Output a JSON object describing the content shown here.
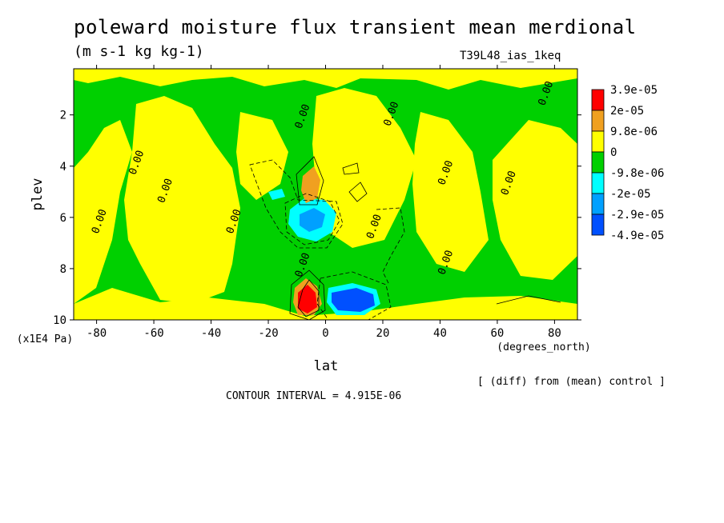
{
  "title": "poleward moisture flux transient mean merdional",
  "units": "(m s-1 kg kg-1)",
  "run_id": "T39L48_ias_1keq",
  "contour_interval_text": "CONTOUR INTERVAL = 4.915E-06",
  "diff_note": "[ (diff) from (mean) control ]",
  "colors": {
    "red": "#ff0000",
    "orange": "#f0a020",
    "yellow": "#ffff00",
    "green": "#00d000",
    "cyan": "#00ffff",
    "sky": "#00a0ff",
    "blue": "#0050ff"
  },
  "chart_data": {
    "type": "heatmap",
    "xlabel": "lat",
    "xunits": "(degrees_north)",
    "ylabel": "plev",
    "yunits": "(x1E4 Pa)",
    "xlim": [
      -88,
      88
    ],
    "ylim": [
      10,
      0.2
    ],
    "x_ticks": [
      -80,
      -60,
      -40,
      -20,
      0,
      20,
      40,
      60,
      80
    ],
    "y_ticks": [
      2,
      4,
      6,
      8,
      10
    ],
    "legend": {
      "placement": "right",
      "labels": [
        "3.9e-05",
        "2e-05",
        "9.8e-06",
        "0",
        "-9.8e-06",
        "-2e-05",
        "-2.9e-05",
        "-4.9e-05"
      ],
      "colors": [
        "#ff0000",
        "#f0a020",
        "#ffff00",
        "#00d000",
        "#00ffff",
        "#00a0ff",
        "#0050ff"
      ]
    },
    "contour_labels": [
      {
        "text": "0.00",
        "lat": -78,
        "plev": 6.2
      },
      {
        "text": "0.00",
        "lat": -65,
        "plev": 3.9
      },
      {
        "text": "0.00",
        "lat": -55,
        "plev": 5.0
      },
      {
        "text": "0.00",
        "lat": -31,
        "plev": 6.2
      },
      {
        "text": "0.00",
        "lat": -7,
        "plev": 7.9
      },
      {
        "text": "0.00",
        "lat": -7,
        "plev": 2.1
      },
      {
        "text": "0.00",
        "lat": 24,
        "plev": 2.0
      },
      {
        "text": "0.00",
        "lat": 18,
        "plev": 6.4
      },
      {
        "text": "0.00",
        "lat": 43,
        "plev": 4.3
      },
      {
        "text": "0.00",
        "lat": 43,
        "plev": 7.8
      },
      {
        "text": "0.00",
        "lat": 65,
        "plev": 4.7
      },
      {
        "text": "0.00",
        "lat": 78,
        "plev": 1.2
      }
    ],
    "filled_regions": [
      {
        "level": "positive_small",
        "color": "yellow",
        "lat_range": [
          -70,
          -30
        ],
        "plev_range": [
          2,
          10
        ]
      },
      {
        "level": "positive_small",
        "color": "yellow",
        "lat_range": [
          50,
          80
        ],
        "plev_range": [
          2,
          10
        ]
      },
      {
        "level": "negative_small",
        "color": "green",
        "lat_range": [
          -88,
          88
        ],
        "plev_range": [
          0.2,
          10
        ]
      },
      {
        "level": "positive_large",
        "color": "red",
        "lat": -6,
        "plev": 9.3
      },
      {
        "level": "positive_mid",
        "color": "orange",
        "lat": -6,
        "plev": 4.6
      },
      {
        "level": "negative_mid",
        "color": "cyan",
        "lat": -3,
        "plev": 6.3
      },
      {
        "level": "negative_large",
        "color": "blue",
        "lat": 10,
        "plev": 9.4
      }
    ]
  }
}
